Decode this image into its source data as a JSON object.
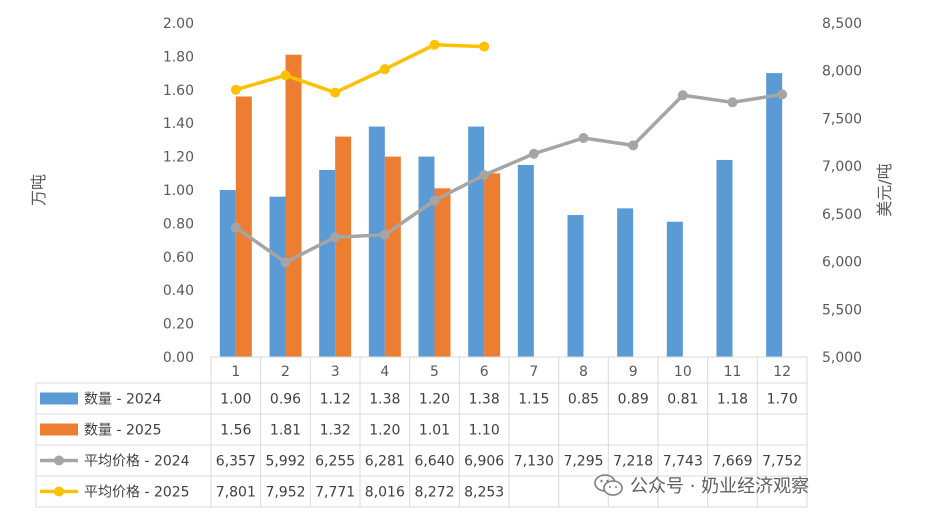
{
  "chart_data": {
    "type": "bar",
    "categories": [
      "1",
      "2",
      "3",
      "4",
      "5",
      "6",
      "7",
      "8",
      "9",
      "10",
      "11",
      "12"
    ],
    "series": [
      {
        "name": "数量 - 2024",
        "type": "bar",
        "axis": "left",
        "color": "#5b9bd5",
        "values": [
          1.0,
          0.96,
          1.12,
          1.38,
          1.2,
          1.38,
          1.15,
          0.85,
          0.89,
          0.81,
          1.18,
          1.7
        ],
        "labels": [
          "1.00",
          "0.96",
          "1.12",
          "1.38",
          "1.20",
          "1.38",
          "1.15",
          "0.85",
          "0.89",
          "0.81",
          "1.18",
          "1.70"
        ]
      },
      {
        "name": "数量 - 2025",
        "type": "bar",
        "axis": "left",
        "color": "#ed7d31",
        "values": [
          1.56,
          1.81,
          1.32,
          1.2,
          1.01,
          1.1,
          null,
          null,
          null,
          null,
          null,
          null
        ],
        "labels": [
          "1.56",
          "1.81",
          "1.32",
          "1.20",
          "1.01",
          "1.10",
          "",
          "",
          "",
          "",
          "",
          ""
        ]
      },
      {
        "name": "平均价格 - 2024",
        "type": "line",
        "axis": "right",
        "color": "#a5a5a5",
        "values": [
          6357,
          5992,
          6255,
          6281,
          6640,
          6906,
          7130,
          7295,
          7218,
          7743,
          7669,
          7752
        ],
        "labels": [
          "6,357",
          "5,992",
          "6,255",
          "6,281",
          "6,640",
          "6,906",
          "7,130",
          "7,295",
          "7,218",
          "7,743",
          "7,669",
          "7,752"
        ]
      },
      {
        "name": "平均价格 - 2025",
        "type": "line",
        "axis": "right",
        "color": "#ffc000",
        "values": [
          7801,
          7952,
          7771,
          8016,
          8272,
          8253,
          null,
          null,
          null,
          null,
          null,
          null
        ],
        "labels": [
          "7,801",
          "7,952",
          "7,771",
          "8,016",
          "8,272",
          "8,253",
          "",
          "",
          "",
          "",
          "",
          ""
        ]
      }
    ],
    "ylabel": "万吨",
    "y2label": "美元/吨",
    "ylim": [
      0,
      2.0
    ],
    "y2lim": [
      5000,
      8500
    ],
    "yticks": [
      "0.00",
      "0.20",
      "0.40",
      "0.60",
      "0.80",
      "1.00",
      "1.20",
      "1.40",
      "1.60",
      "1.80",
      "2.00"
    ],
    "y2ticks": [
      "5,000",
      "5,500",
      "6,000",
      "6,500",
      "7,000",
      "7,500",
      "8,000",
      "8,500"
    ],
    "grid": false,
    "legend": "data-table"
  },
  "watermark": {
    "text": "公众号 · 奶业经济观察",
    "icon": "wechat-icon"
  }
}
